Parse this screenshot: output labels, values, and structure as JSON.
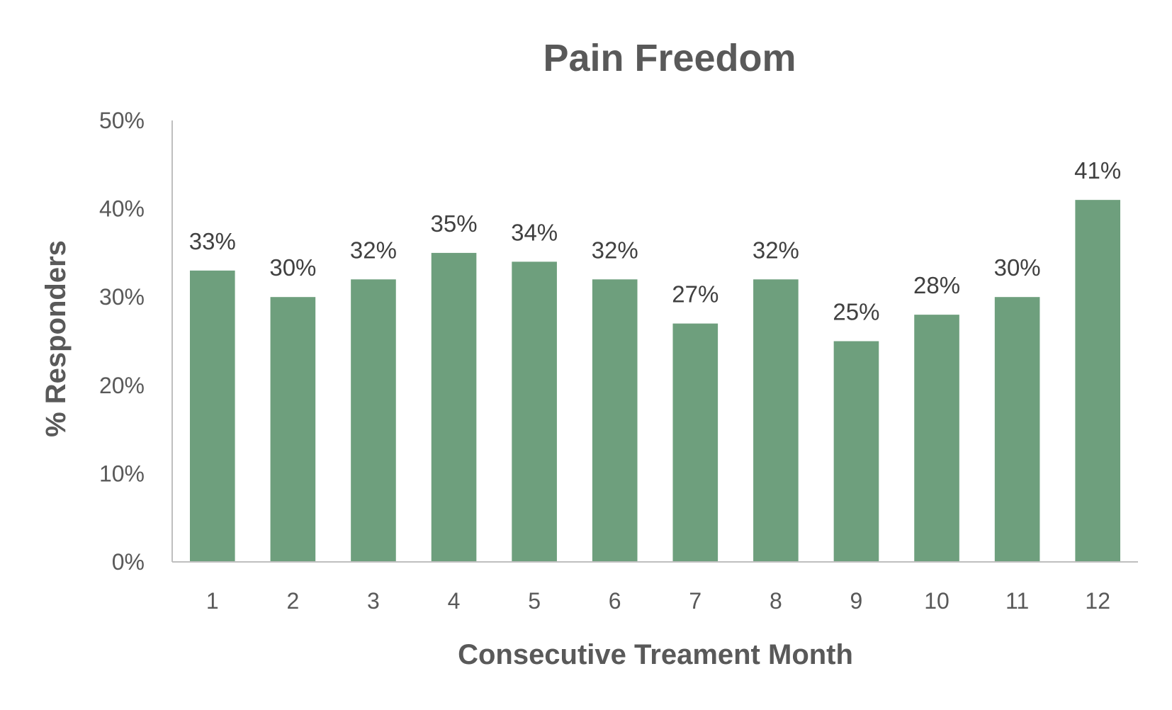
{
  "chart_data": {
    "type": "bar",
    "title": "Pain Freedom",
    "xlabel": "Consecutive Treament Month",
    "ylabel": "% Responders",
    "categories": [
      "1",
      "2",
      "3",
      "4",
      "5",
      "6",
      "7",
      "8",
      "9",
      "10",
      "11",
      "12"
    ],
    "values": [
      33,
      30,
      32,
      35,
      34,
      32,
      27,
      32,
      25,
      28,
      30,
      41
    ],
    "data_labels": [
      "33%",
      "30%",
      "32%",
      "35%",
      "34%",
      "32%",
      "27%",
      "32%",
      "25%",
      "28%",
      "30%",
      "41%"
    ],
    "ylim": [
      0,
      50
    ],
    "yticks": [
      0,
      10,
      20,
      30,
      40,
      50
    ],
    "ytick_labels": [
      "0%",
      "10%",
      "20%",
      "30%",
      "40%",
      "50%"
    ],
    "grid": false,
    "legend": "none",
    "bar_color": "#6e9f7d",
    "axis_color": "#bfbfbf"
  }
}
